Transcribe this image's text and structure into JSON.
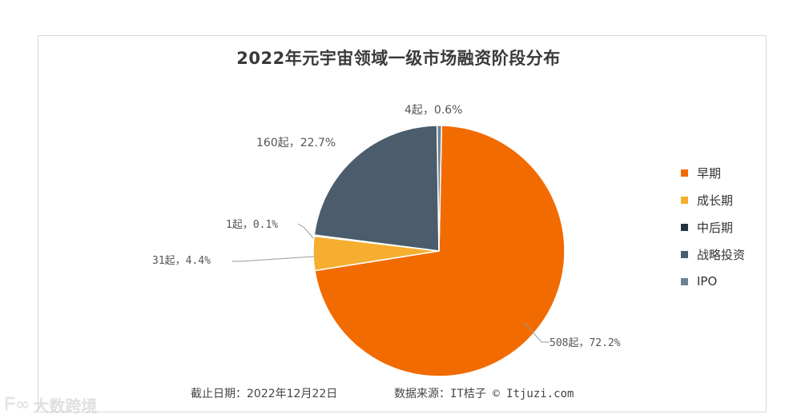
{
  "chart_data": {
    "type": "pie",
    "title": "2022年元宇宙领域一级市场融资阶段分布",
    "slices": [
      {
        "name": "早期",
        "count": 508,
        "percent": 72.2,
        "label": "508起，72.2%",
        "color": "#f26b00"
      },
      {
        "name": "成长期",
        "count": 31,
        "percent": 4.4,
        "label": "31起，4.4%",
        "color": "#f5ae2f"
      },
      {
        "name": "中后期",
        "count": 1,
        "percent": 0.1,
        "label": "1起，0.1%",
        "color": "#26343f"
      },
      {
        "name": "战略投资",
        "count": 160,
        "percent": 22.7,
        "label": "160起，22.7%",
        "color": "#4b5d6c"
      },
      {
        "name": "IPO",
        "count": 4,
        "percent": 0.6,
        "label": "4起，0.6%",
        "color": "#6f8292"
      }
    ],
    "legend_position": "right"
  },
  "footer": {
    "date": "截止日期：2022年12月22日",
    "source": "数据来源：IT桔子 © Itjuzi.com"
  },
  "watermark": {
    "logo": "ᖴ∞",
    "text": "大数跨境"
  }
}
